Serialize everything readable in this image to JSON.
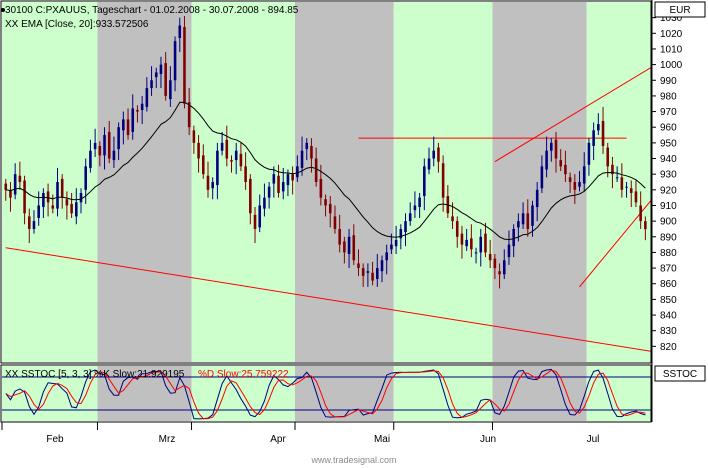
{
  "header": {
    "title_line": "30100  C:PXAUUS, Tageschart - 01.02.2008 - 30.07.2008 - 894.85",
    "indicator_line": "XX EMA [Close, 20]:933.572506",
    "currency": "EUR",
    "stoch_line_k": "XX SSTOC [5, 3, 3] %K Slow:21.929195",
    "stoch_line_d": "%D Slow:25.759222",
    "stoch_axis_label": "SSTOC",
    "watermark": "www.tradesignal.com"
  },
  "colors": {
    "green_band": "#ccffcc",
    "gray_band": "#c0c0c0",
    "trendline": "#ff0000",
    "ema": "#000000",
    "up_candle": "#000080",
    "down_candle": "#800000",
    "stoch_k": "#000080",
    "stoch_d": "#ff0000",
    "stoch_level": "#000080"
  },
  "chart_data": {
    "type": "candlestick",
    "y_axis": {
      "min": 810,
      "max": 1040,
      "ticks": [
        1030,
        1020,
        1010,
        1000,
        990,
        980,
        970,
        960,
        950,
        940,
        930,
        920,
        910,
        900,
        890,
        880,
        870,
        860,
        850,
        840,
        830,
        820
      ]
    },
    "months": [
      "Feb",
      "Mrz",
      "Apr",
      "Mai",
      "Jun",
      "Jul"
    ],
    "month_bands": [
      "green",
      "gray",
      "green",
      "gray",
      "green",
      "gray"
    ],
    "closes": [
      920,
      915,
      930,
      925,
      905,
      895,
      900,
      910,
      918,
      912,
      908,
      925,
      915,
      910,
      905,
      912,
      918,
      935,
      945,
      950,
      942,
      955,
      940,
      945,
      960,
      965,
      955,
      972,
      970,
      975,
      985,
      990,
      995,
      1000,
      980,
      990,
      1015,
      1025,
      975,
      960,
      950,
      940,
      930,
      920,
      925,
      945,
      950,
      940,
      938,
      945,
      935,
      925,
      905,
      895,
      910,
      915,
      922,
      930,
      918,
      925,
      930,
      926,
      935,
      945,
      950,
      940,
      925,
      915,
      910,
      905,
      895,
      885,
      880,
      890,
      875,
      870,
      865,
      868,
      862,
      870,
      875,
      880,
      885,
      888,
      895,
      900,
      905,
      910,
      915,
      935,
      940,
      945,
      938,
      915,
      905,
      900,
      890,
      885,
      888,
      882,
      880,
      890,
      880,
      875,
      870,
      866,
      875,
      885,
      895,
      900,
      905,
      895,
      910,
      920,
      935,
      945,
      950,
      940,
      935,
      930,
      925,
      920,
      925,
      935,
      950,
      958,
      962,
      948,
      935,
      930,
      928,
      920,
      922,
      918,
      912,
      900,
      894.85
    ],
    "trendlines": [
      {
        "from": [
          0,
          883
        ],
        "to": [
          141,
          815
        ]
      },
      {
        "from": [
          75,
          953
        ],
        "to": [
          132,
          953
        ]
      },
      {
        "from": [
          104,
          938
        ],
        "to": [
          141,
          1005
        ]
      },
      {
        "from": [
          122,
          858
        ],
        "to": [
          141,
          927
        ]
      }
    ],
    "ema_period": 20,
    "stoch_levels": [
      80,
      20
    ]
  },
  "x_axis_ticks": [
    "Feb",
    "Mrz",
    "Apr",
    "Mai",
    "Jun",
    "Jul"
  ]
}
